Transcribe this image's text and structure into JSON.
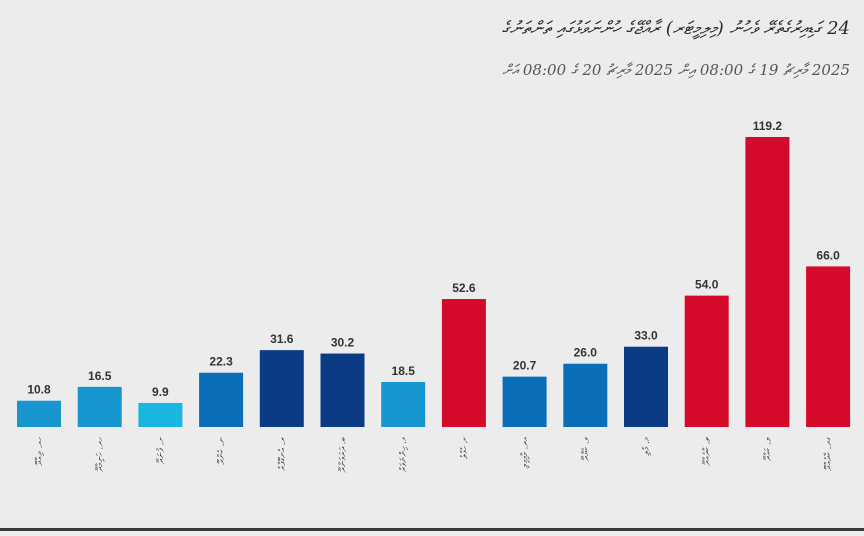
{
  "header": {
    "title": "24 ގަޑިއިރުގެތެރޭ ވެހުނު (މިލިމީޓަރ) ރާއްޖޭގެ ހުންނަވަޅުގައި ތަންތަނުގެ",
    "subtitle": "2025 މާރިޗު 19 ގެ 08:00 އިން 2025 މާރިޗު 20 ގެ 08:00 އަށް"
  },
  "colors": {
    "background": "#ececec",
    "red": "#d50a2b",
    "navy": "#0c3b86",
    "blue_mid": "#0a6fb8",
    "blue_light": "#1896cf",
    "cyan": "#19b6e0"
  },
  "chart_data": {
    "type": "bar",
    "direction": "rtl",
    "categories": [
      "ހއ. ދިއްދޫ",
      "ހދ. ހަނިމާދޫ",
      "ށ. ފުނަދޫ",
      "ނ. ކެންދޫ",
      "ރ. އުނގޫފާރު",
      "ބ. ދަރަވަންދޫ",
      "ޅ. ހިންނަވަރު",
      "ކ. ހުޅުލެ",
      "އދ. މާމިގިލި",
      "ވ. ކެޔޮދޫ",
      "މ. މުލި",
      "ތ. ކާދެއްދޫ",
      "ލ. ކައްދޫ",
      "ގދ. ކާދެއްދޫ"
    ],
    "values": [
      10.8,
      16.5,
      9.9,
      22.3,
      31.6,
      30.2,
      18.5,
      52.6,
      20.7,
      26.0,
      33.0,
      54.0,
      119.2,
      66.0
    ],
    "value_labels": [
      "10.8",
      "16.5",
      "9.9",
      "22.3",
      "31.6",
      "30.2",
      "18.5",
      "52.6",
      "20.7",
      "26.0",
      "33.0",
      "54.0",
      "119.2",
      "66.0"
    ],
    "bar_colors": [
      "#1896cf",
      "#1896cf",
      "#19b6e0",
      "#0a6fb8",
      "#0c3b86",
      "#0c3b86",
      "#1896cf",
      "#d50a2b",
      "#0a6fb8",
      "#0a6fb8",
      "#0c3b86",
      "#d50a2b",
      "#d50a2b",
      "#d50a2b"
    ],
    "ylim": [
      0,
      125
    ],
    "grid": false,
    "legend": "none"
  }
}
